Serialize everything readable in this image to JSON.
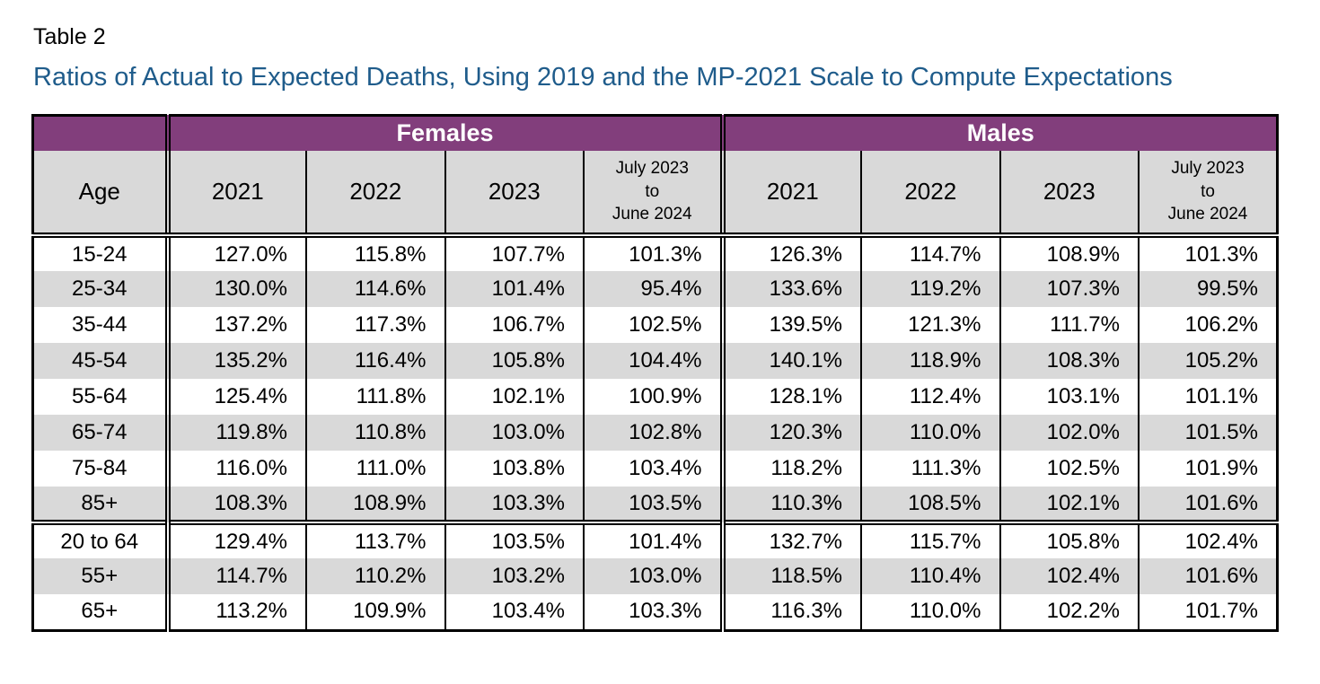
{
  "doc": {
    "label": "Table 2",
    "title": "Ratios of Actual to Expected Deaths, Using 2019 and the MP-2021 Scale to Compute Expectations"
  },
  "colors": {
    "header_purple": "#823E7C",
    "row_gray": "#D9D9D9",
    "title_blue": "#1F5C8B"
  },
  "table": {
    "age_header": "Age",
    "group_headers": [
      "Females",
      "Males"
    ],
    "year_headers": [
      "2021",
      "2022",
      "2023"
    ],
    "period_header": "July 2023\nto\nJune 2024",
    "rows": [
      {
        "age": "15-24",
        "cells": [
          "127.0%",
          "115.8%",
          "107.7%",
          "101.3%",
          "126.3%",
          "114.7%",
          "108.9%",
          "101.3%"
        ]
      },
      {
        "age": "25-34",
        "cells": [
          "130.0%",
          "114.6%",
          "101.4%",
          "95.4%",
          "133.6%",
          "119.2%",
          "107.3%",
          "99.5%"
        ]
      },
      {
        "age": "35-44",
        "cells": [
          "137.2%",
          "117.3%",
          "106.7%",
          "102.5%",
          "139.5%",
          "121.3%",
          "111.7%",
          "106.2%"
        ]
      },
      {
        "age": "45-54",
        "cells": [
          "135.2%",
          "116.4%",
          "105.8%",
          "104.4%",
          "140.1%",
          "118.9%",
          "108.3%",
          "105.2%"
        ]
      },
      {
        "age": "55-64",
        "cells": [
          "125.4%",
          "111.8%",
          "102.1%",
          "100.9%",
          "128.1%",
          "112.4%",
          "103.1%",
          "101.1%"
        ]
      },
      {
        "age": "65-74",
        "cells": [
          "119.8%",
          "110.8%",
          "103.0%",
          "102.8%",
          "120.3%",
          "110.0%",
          "102.0%",
          "101.5%"
        ]
      },
      {
        "age": "75-84",
        "cells": [
          "116.0%",
          "111.0%",
          "103.8%",
          "103.4%",
          "118.2%",
          "111.3%",
          "102.5%",
          "101.9%"
        ]
      },
      {
        "age": "85+",
        "cells": [
          "108.3%",
          "108.9%",
          "103.3%",
          "103.5%",
          "110.3%",
          "108.5%",
          "102.1%",
          "101.6%"
        ]
      }
    ],
    "summary_rows": [
      {
        "age": "20 to 64",
        "cells": [
          "129.4%",
          "113.7%",
          "103.5%",
          "101.4%",
          "132.7%",
          "115.7%",
          "105.8%",
          "102.4%"
        ]
      },
      {
        "age": "55+",
        "cells": [
          "114.7%",
          "110.2%",
          "103.2%",
          "103.0%",
          "118.5%",
          "110.4%",
          "102.4%",
          "101.6%"
        ]
      },
      {
        "age": "65+",
        "cells": [
          "113.2%",
          "109.9%",
          "103.4%",
          "103.3%",
          "116.3%",
          "110.0%",
          "102.2%",
          "101.7%"
        ]
      }
    ]
  }
}
